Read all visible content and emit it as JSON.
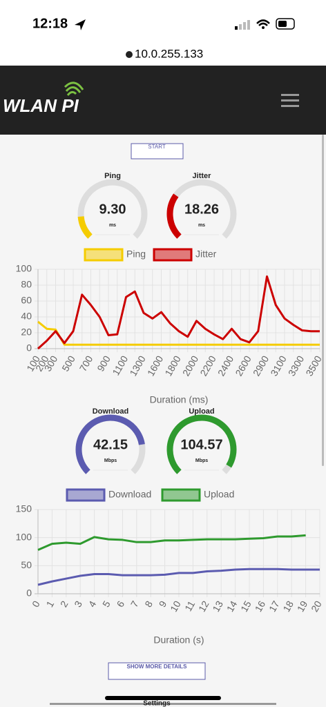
{
  "status_bar": {
    "time": "12:18"
  },
  "url": "10.0.255.133",
  "header": {
    "logo": "WLAN PI"
  },
  "start_button": "START",
  "gauges_top": [
    {
      "title": "Ping",
      "value": "9.30",
      "unit": "ms"
    },
    {
      "title": "Jitter",
      "value": "18.26",
      "unit": "ms"
    }
  ],
  "gauges_bottom": [
    {
      "title": "Download",
      "value": "42.15",
      "unit": "Mbps"
    },
    {
      "title": "Upload",
      "value": "104.57",
      "unit": "Mbps"
    }
  ],
  "chart_data": [
    {
      "type": "line",
      "x_label": "Duration (ms)",
      "categories": [
        "100",
        "200",
        "300",
        null,
        "500",
        null,
        "700",
        null,
        "900",
        null,
        "1100",
        null,
        "1300",
        null,
        "1600",
        null,
        "1800",
        null,
        "2000",
        null,
        "2200",
        null,
        "2400",
        null,
        "2600",
        null,
        "2900",
        null,
        "3100",
        null,
        "3300",
        null,
        "3500"
      ],
      "series": [
        {
          "name": "Ping",
          "color": "#f5cc00",
          "values": [
            34,
            25,
            24,
            5,
            5,
            5,
            5,
            5,
            5,
            5,
            5,
            5,
            5,
            5,
            5,
            5,
            5,
            5,
            5,
            5,
            5,
            5,
            5,
            5,
            5,
            5,
            5,
            5,
            5,
            5,
            5,
            5,
            5
          ]
        },
        {
          "name": "Jitter",
          "color": "#cc0000",
          "values": [
            0,
            10,
            22,
            7,
            22,
            68,
            55,
            40,
            17,
            18,
            65,
            72,
            45,
            38,
            46,
            32,
            22,
            15,
            35,
            25,
            18,
            12,
            25,
            12,
            8,
            22,
            91,
            55,
            38,
            30,
            23,
            22,
            22
          ]
        }
      ],
      "ylim": [
        0,
        100
      ],
      "yticks": [
        0,
        20,
        40,
        60,
        80,
        100
      ],
      "grid": true
    },
    {
      "type": "line",
      "x_label": "Duration (s)",
      "categories": [
        "0",
        "1",
        "2",
        "3",
        "4",
        "5",
        "6",
        "7",
        "8",
        "9",
        "10",
        "11",
        "12",
        "13",
        "14",
        "15",
        "16",
        "17",
        "18",
        "19",
        "20"
      ],
      "series": [
        {
          "name": "Download",
          "color": "#5b5bb0",
          "values": [
            16,
            22,
            27,
            32,
            35,
            35,
            33,
            33,
            33,
            34,
            37,
            37,
            40,
            41,
            43,
            44,
            44,
            44,
            43,
            43,
            43
          ]
        },
        {
          "name": "Upload",
          "color": "#2e9a2e",
          "values": [
            78,
            89,
            91,
            89,
            101,
            97,
            96,
            92,
            92,
            95,
            95,
            96,
            97,
            97,
            97,
            98,
            99,
            102,
            102,
            104,
            null
          ]
        }
      ],
      "ylim": [
        0,
        150
      ],
      "yticks": [
        0,
        50,
        100,
        150
      ],
      "grid": true
    }
  ]
}
